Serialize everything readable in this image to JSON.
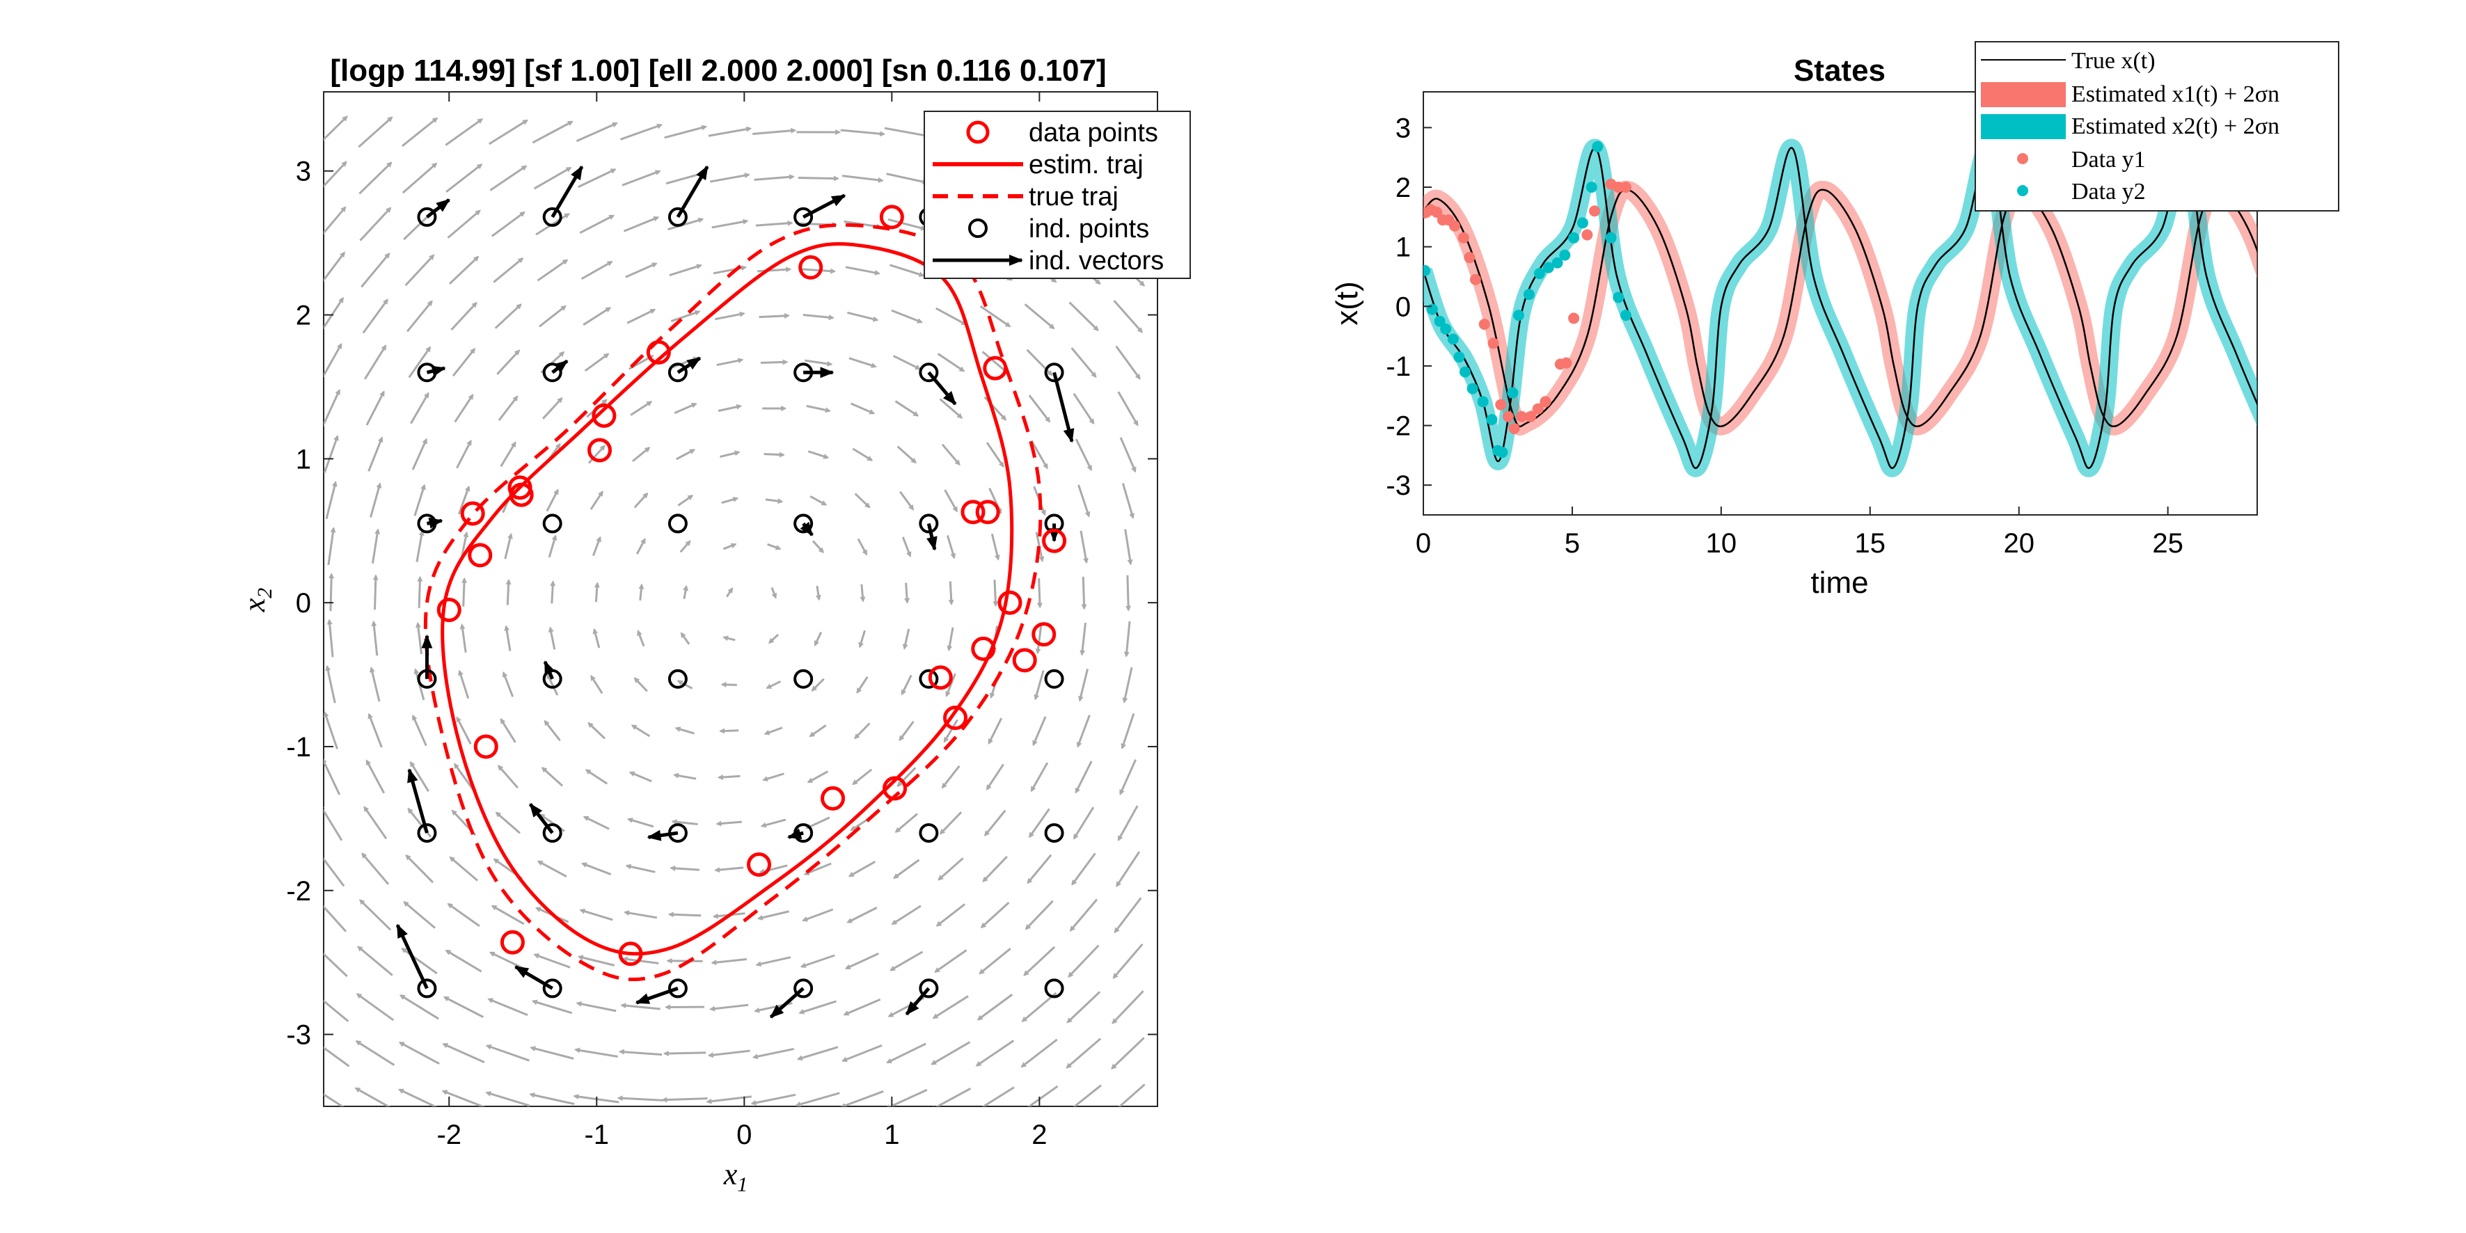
{
  "chart_data": [
    {
      "type": "scatter",
      "title": "[logp 114.99] [sf 1.00] [ell 2.000 2.000] [sn 0.116 0.107]",
      "xlabel": "x",
      "xlabel_sub": "1",
      "ylabel": "x",
      "ylabel_sub": "2",
      "xlim": [
        -2.85,
        2.8
      ],
      "ylim": [
        -3.5,
        3.55
      ],
      "xticks": [
        -2,
        -1,
        0,
        1,
        2
      ],
      "yticks": [
        -3,
        -2,
        -1,
        0,
        1,
        2,
        3
      ],
      "xtick_labels": [
        "-2",
        "-1",
        "0",
        "1",
        "2"
      ],
      "ytick_labels": [
        "-3",
        "-2",
        "-1",
        "0",
        "1",
        "2",
        "3"
      ],
      "grid": false,
      "legend_position": "top-right",
      "legend": [
        "data points",
        "estim. traj",
        "true traj",
        "ind. points",
        "ind. vectors"
      ],
      "colors": {
        "estim": "#ff0000",
        "true": "#ff0000",
        "points": "#ff0000",
        "ind": "#000000",
        "field": "#aaaaaa"
      },
      "data_points": [
        [
          1.0,
          2.68
        ],
        [
          0.45,
          2.33
        ],
        [
          -0.58,
          1.74
        ],
        [
          -0.95,
          1.3
        ],
        [
          -0.98,
          1.06
        ],
        [
          -1.52,
          0.8
        ],
        [
          -1.51,
          0.75
        ],
        [
          -1.84,
          0.62
        ],
        [
          -1.79,
          0.33
        ],
        [
          -2.0,
          -0.05
        ],
        [
          -1.75,
          -1.0
        ],
        [
          -1.57,
          -2.36
        ],
        [
          -0.77,
          -2.44
        ],
        [
          0.1,
          -1.82
        ],
        [
          0.6,
          -1.36
        ],
        [
          1.02,
          -1.29
        ],
        [
          1.43,
          -0.8
        ],
        [
          1.33,
          -0.52
        ],
        [
          1.62,
          -0.32
        ],
        [
          1.8,
          0.0
        ],
        [
          1.9,
          -0.4
        ],
        [
          2.03,
          -0.22
        ],
        [
          2.1,
          0.43
        ],
        [
          1.65,
          0.63
        ],
        [
          1.55,
          0.63
        ],
        [
          1.7,
          1.63
        ]
      ],
      "estim_traj": [
        [
          0.8,
          2.48
        ],
        [
          0.3,
          2.4
        ],
        [
          -0.4,
          1.85
        ],
        [
          -1.1,
          1.2
        ],
        [
          -1.7,
          0.6
        ],
        [
          -2.03,
          0.0
        ],
        [
          -1.95,
          -0.9
        ],
        [
          -1.6,
          -1.8
        ],
        [
          -1.05,
          -2.35
        ],
        [
          -0.5,
          -2.4
        ],
        [
          0.2,
          -1.95
        ],
        [
          0.8,
          -1.45
        ],
        [
          1.4,
          -0.8
        ],
        [
          1.75,
          -0.1
        ],
        [
          1.8,
          0.8
        ],
        [
          1.6,
          1.6
        ],
        [
          1.35,
          2.25
        ],
        [
          0.8,
          2.48
        ]
      ],
      "true_traj": [
        [
          0.8,
          2.62
        ],
        [
          0.2,
          2.5
        ],
        [
          -0.5,
          1.9
        ],
        [
          -1.2,
          1.2
        ],
        [
          -1.85,
          0.6
        ],
        [
          -2.15,
          0.0
        ],
        [
          -2.05,
          -0.9
        ],
        [
          -1.7,
          -1.9
        ],
        [
          -1.1,
          -2.5
        ],
        [
          -0.55,
          -2.58
        ],
        [
          0.2,
          -2.05
        ],
        [
          0.85,
          -1.5
        ],
        [
          1.5,
          -0.85
        ],
        [
          1.9,
          -0.1
        ],
        [
          2.0,
          0.8
        ],
        [
          1.75,
          1.7
        ],
        [
          1.45,
          2.4
        ],
        [
          0.8,
          2.62
        ]
      ],
      "ind_points": [
        [
          -2.15,
          2.68
        ],
        [
          -1.3,
          2.68
        ],
        [
          -0.45,
          2.68
        ],
        [
          0.4,
          2.68
        ],
        [
          1.25,
          2.68
        ],
        [
          2.1,
          2.68
        ],
        [
          -2.15,
          1.6
        ],
        [
          -1.3,
          1.6
        ],
        [
          -0.45,
          1.6
        ],
        [
          0.4,
          1.6
        ],
        [
          1.25,
          1.6
        ],
        [
          2.1,
          1.6
        ],
        [
          -2.15,
          0.55
        ],
        [
          -1.3,
          0.55
        ],
        [
          -0.45,
          0.55
        ],
        [
          0.4,
          0.55
        ],
        [
          1.25,
          0.55
        ],
        [
          2.1,
          0.55
        ],
        [
          -2.15,
          -0.53
        ],
        [
          -1.3,
          -0.53
        ],
        [
          -0.45,
          -0.53
        ],
        [
          0.4,
          -0.53
        ],
        [
          1.25,
          -0.53
        ],
        [
          2.1,
          -0.53
        ],
        [
          -2.15,
          -1.6
        ],
        [
          -1.3,
          -1.6
        ],
        [
          -0.45,
          -1.6
        ],
        [
          0.4,
          -1.6
        ],
        [
          1.25,
          -1.6
        ],
        [
          2.1,
          -1.6
        ],
        [
          -2.15,
          -2.68
        ],
        [
          -1.3,
          -2.68
        ],
        [
          -0.45,
          -2.68
        ],
        [
          0.4,
          -2.68
        ],
        [
          1.25,
          -2.68
        ],
        [
          2.1,
          -2.68
        ]
      ],
      "ind_vectors": [
        [
          0.15,
          0.12
        ],
        [
          0.2,
          0.35
        ],
        [
          0.2,
          0.35
        ],
        [
          0.28,
          0.15
        ],
        [
          0.1,
          0.05
        ],
        [
          0.0,
          0.0
        ],
        [
          0.12,
          0.03
        ],
        [
          0.1,
          0.08
        ],
        [
          0.15,
          0.1
        ],
        [
          0.2,
          0.0
        ],
        [
          0.18,
          -0.22
        ],
        [
          0.12,
          -0.48
        ],
        [
          0.1,
          0.02
        ],
        [
          0.0,
          0.0
        ],
        [
          0.0,
          0.0
        ],
        [
          0.06,
          -0.08
        ],
        [
          0.04,
          -0.18
        ],
        [
          0.0,
          -0.12
        ],
        [
          0.0,
          0.3
        ],
        [
          -0.05,
          0.12
        ],
        [
          0.0,
          0.0
        ],
        [
          0.0,
          0.0
        ],
        [
          0.0,
          0.0
        ],
        [
          0.0,
          0.0
        ],
        [
          -0.12,
          0.44
        ],
        [
          -0.15,
          0.2
        ],
        [
          -0.2,
          -0.03
        ],
        [
          -0.1,
          -0.03
        ],
        [
          0.0,
          0.0
        ],
        [
          0.0,
          0.0
        ],
        [
          -0.2,
          0.44
        ],
        [
          -0.25,
          0.15
        ],
        [
          -0.28,
          -0.1
        ],
        [
          -0.22,
          -0.2
        ],
        [
          -0.15,
          -0.18
        ],
        [
          0.0,
          0.0
        ]
      ]
    },
    {
      "type": "line",
      "title": "States",
      "xlabel": "time",
      "ylabel": "x(t)",
      "xlim": [
        0,
        28
      ],
      "ylim": [
        -3.5,
        3.6
      ],
      "xticks": [
        0,
        5,
        10,
        15,
        20,
        25
      ],
      "yticks": [
        -3,
        -2,
        -1,
        0,
        1,
        2,
        3
      ],
      "xtick_labels": [
        "0",
        "5",
        "10",
        "15",
        "20",
        "25"
      ],
      "ytick_labels": [
        "-3",
        "-2",
        "-1",
        "0",
        "1",
        "2",
        "3"
      ],
      "grid": false,
      "legend_position": "top-right",
      "legend": [
        "True x(t)",
        "Estimated x1(t) + 2σn",
        "Estimated x2(t) + 2σn",
        "Data y1",
        "Data y2"
      ],
      "colors": {
        "true": "#000000",
        "est1": "#f8766d",
        "est2": "#00bfc4"
      },
      "period": 6.6,
      "series": [
        {
          "name": "True x(t)",
          "x1": [
            [
              0,
              1.6
            ],
            [
              0.5,
              1.8
            ],
            [
              1.3,
              1.3
            ],
            [
              2.2,
              0.0
            ],
            [
              3.0,
              -1.8
            ],
            [
              3.5,
              -1.95
            ],
            [
              4.5,
              -1.5
            ],
            [
              5.5,
              -0.5
            ],
            [
              6.3,
              1.5
            ],
            [
              6.9,
              1.95
            ],
            [
              8.0,
              1.0
            ],
            [
              9.2,
              -1.0
            ],
            [
              10.1,
              -2.0
            ],
            [
              11.0,
              -1.5
            ]
          ],
          "x2": [
            [
              0,
              0.6
            ],
            [
              0.6,
              -0.3
            ],
            [
              1.4,
              -0.9
            ],
            [
              2.0,
              -1.6
            ],
            [
              2.5,
              -2.6
            ],
            [
              2.9,
              -1.7
            ],
            [
              3.3,
              -0.1
            ],
            [
              4.0,
              0.7
            ],
            [
              5.0,
              1.3
            ],
            [
              5.8,
              2.65
            ],
            [
              6.5,
              0.5
            ],
            [
              7.5,
              -0.8
            ],
            [
              8.7,
              -2.2
            ],
            [
              9.2,
              -2.7
            ],
            [
              9.7,
              -1.7
            ],
            [
              10.0,
              0.0
            ]
          ]
        }
      ],
      "data_y1": [
        [
          0.05,
          1.57
        ],
        [
          0.25,
          1.62
        ],
        [
          0.45,
          1.58
        ],
        [
          0.65,
          1.45
        ],
        [
          0.85,
          1.45
        ],
        [
          1.05,
          1.35
        ],
        [
          1.35,
          1.15
        ],
        [
          1.55,
          0.82
        ],
        [
          1.75,
          0.45
        ],
        [
          2.05,
          -0.3
        ],
        [
          2.35,
          -0.62
        ],
        [
          2.6,
          -1.65
        ],
        [
          2.85,
          -1.85
        ],
        [
          3.05,
          -2.05
        ],
        [
          3.3,
          -1.85
        ],
        [
          3.6,
          -1.85
        ],
        [
          3.85,
          -1.72
        ],
        [
          4.1,
          -1.6
        ],
        [
          4.6,
          -0.97
        ],
        [
          4.8,
          -0.95
        ],
        [
          5.05,
          -0.2
        ],
        [
          5.5,
          1.2
        ],
        [
          5.75,
          1.6
        ],
        [
          6.3,
          2.05
        ],
        [
          6.55,
          2.0
        ],
        [
          6.8,
          2.0
        ]
      ],
      "data_y2": [
        [
          0.05,
          0.6
        ],
        [
          0.3,
          -0.05
        ],
        [
          0.55,
          -0.25
        ],
        [
          0.75,
          -0.38
        ],
        [
          1.0,
          -0.55
        ],
        [
          1.2,
          -0.85
        ],
        [
          1.4,
          -1.1
        ],
        [
          1.65,
          -1.38
        ],
        [
          2.0,
          -1.6
        ],
        [
          2.3,
          -1.9
        ],
        [
          2.5,
          -2.42
        ],
        [
          2.65,
          -2.45
        ],
        [
          3.0,
          -1.45
        ],
        [
          3.2,
          -0.15
        ],
        [
          3.55,
          0.2
        ],
        [
          3.9,
          0.55
        ],
        [
          4.2,
          0.65
        ],
        [
          4.5,
          0.73
        ],
        [
          4.75,
          0.86
        ],
        [
          5.05,
          1.15
        ],
        [
          5.35,
          1.4
        ],
        [
          5.65,
          2.0
        ],
        [
          5.85,
          2.68
        ],
        [
          6.3,
          1.15
        ],
        [
          6.55,
          0.15
        ],
        [
          6.8,
          -0.15
        ]
      ]
    }
  ]
}
